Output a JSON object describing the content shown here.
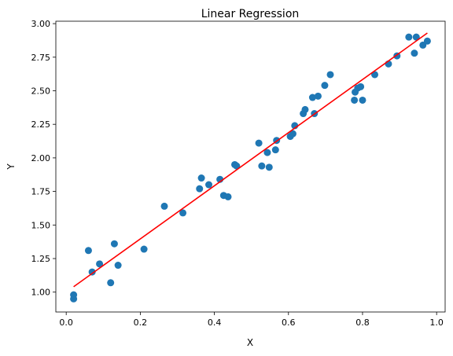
{
  "chart_data": {
    "type": "scatter",
    "title": "Linear Regression",
    "xlabel": "X",
    "ylabel": "Y",
    "xlim": [
      -0.028,
      1.023
    ],
    "ylim": [
      0.852,
      3.018
    ],
    "x_ticks": [
      0.0,
      0.2,
      0.4,
      0.6,
      0.8,
      1.0
    ],
    "x_tick_labels": [
      "0.0",
      "0.2",
      "0.4",
      "0.6",
      "0.8",
      "1.0"
    ],
    "y_ticks": [
      1.0,
      1.25,
      1.5,
      1.75,
      2.0,
      2.25,
      2.5,
      2.75,
      3.0
    ],
    "y_tick_labels": [
      "1.00",
      "1.25",
      "1.50",
      "1.75",
      "2.00",
      "2.25",
      "2.50",
      "2.75",
      "3.00"
    ],
    "grid": false,
    "colors": {
      "points": "#1f77b4",
      "line": "#ff0000"
    },
    "series": [
      {
        "type": "scatter",
        "x": [
          0.02,
          0.02,
          0.06,
          0.07,
          0.09,
          0.12,
          0.13,
          0.14,
          0.21,
          0.265,
          0.315,
          0.36,
          0.365,
          0.385,
          0.415,
          0.425,
          0.437,
          0.455,
          0.46,
          0.52,
          0.528,
          0.543,
          0.548,
          0.565,
          0.568,
          0.605,
          0.612,
          0.617,
          0.64,
          0.645,
          0.665,
          0.67,
          0.68,
          0.698,
          0.713,
          0.778,
          0.78,
          0.787,
          0.795,
          0.8,
          0.833,
          0.87,
          0.893,
          0.925,
          0.94,
          0.945,
          0.963,
          0.975
        ],
        "y": [
          0.95,
          0.98,
          1.31,
          1.15,
          1.21,
          1.07,
          1.36,
          1.2,
          1.32,
          1.64,
          1.59,
          1.77,
          1.85,
          1.8,
          1.84,
          1.72,
          1.71,
          1.95,
          1.94,
          2.11,
          1.94,
          2.04,
          1.93,
          2.06,
          2.13,
          2.16,
          2.18,
          2.24,
          2.33,
          2.36,
          2.45,
          2.33,
          2.46,
          2.54,
          2.62,
          2.43,
          2.49,
          2.52,
          2.53,
          2.43,
          2.62,
          2.7,
          2.76,
          2.9,
          2.78,
          2.9,
          2.84,
          2.87
        ]
      },
      {
        "type": "line",
        "x": [
          0.02,
          0.975
        ],
        "y": [
          1.04,
          2.93
        ]
      }
    ]
  }
}
